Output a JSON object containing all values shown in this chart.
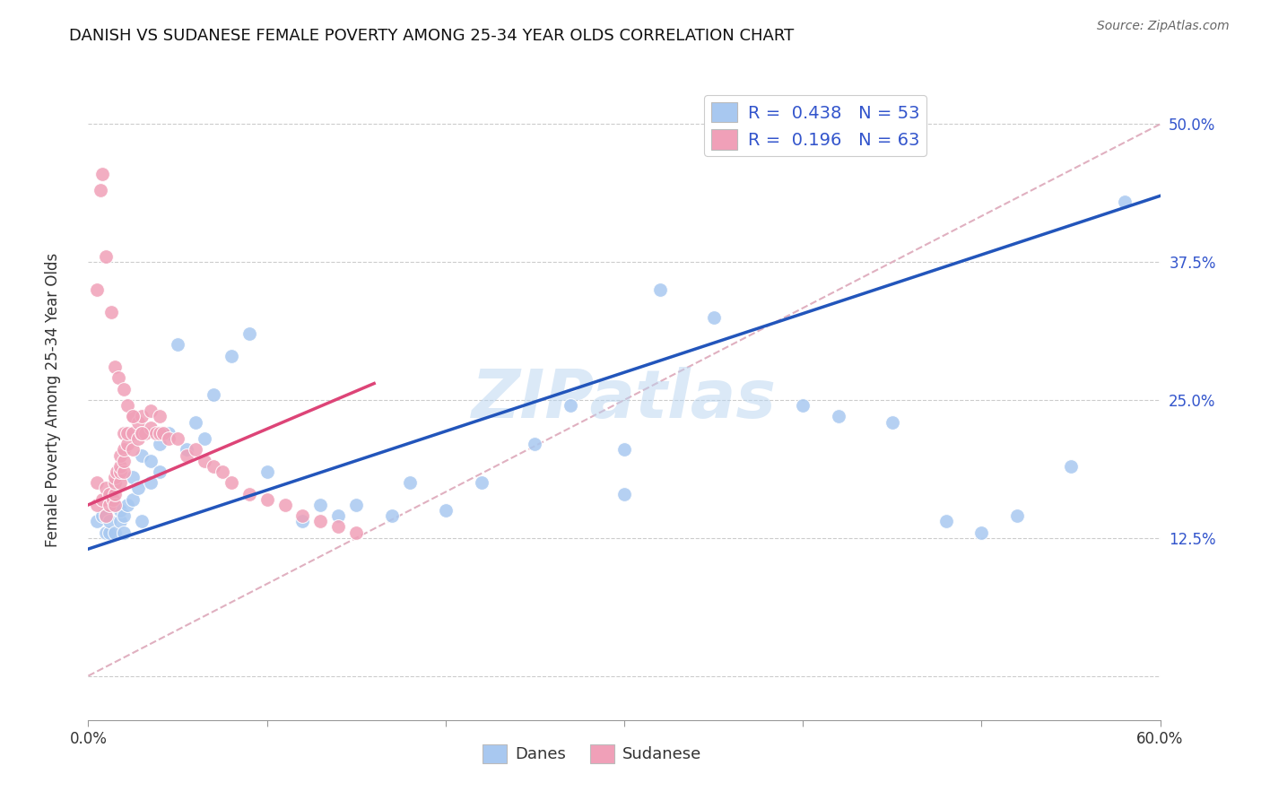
{
  "title": "DANISH VS SUDANESE FEMALE POVERTY AMONG 25-34 YEAR OLDS CORRELATION CHART",
  "source": "Source: ZipAtlas.com",
  "ylabel": "Female Poverty Among 25-34 Year Olds",
  "xlim": [
    0.0,
    0.6
  ],
  "ylim": [
    -0.04,
    0.54
  ],
  "xticks": [
    0.0,
    0.1,
    0.2,
    0.3,
    0.4,
    0.5,
    0.6
  ],
  "xticklabels": [
    "0.0%",
    "",
    "",
    "",
    "",
    "",
    "60.0%"
  ],
  "ytick_positions": [
    0.0,
    0.125,
    0.25,
    0.375,
    0.5
  ],
  "ytick_labels": [
    "",
    "12.5%",
    "25.0%",
    "37.5%",
    "50.0%"
  ],
  "danes_color": "#a8c8f0",
  "sudanese_color": "#f0a0b8",
  "danes_R": 0.438,
  "danes_N": 53,
  "sudanese_R": 0.196,
  "sudanese_N": 63,
  "danes_line_color": "#2255bb",
  "sudanese_line_color": "#dd4477",
  "diagonal_color": "#e0b0c0",
  "watermark": "ZIPatlas",
  "danes_line_x0": 0.0,
  "danes_line_y0": 0.115,
  "danes_line_x1": 0.6,
  "danes_line_y1": 0.435,
  "sudanese_line_x0": 0.0,
  "sudanese_line_y0": 0.155,
  "sudanese_line_x1": 0.16,
  "sudanese_line_y1": 0.265,
  "danes_x": [
    0.005,
    0.008,
    0.01,
    0.01,
    0.012,
    0.012,
    0.015,
    0.015,
    0.018,
    0.018,
    0.02,
    0.02,
    0.022,
    0.025,
    0.025,
    0.028,
    0.03,
    0.03,
    0.035,
    0.035,
    0.04,
    0.04,
    0.045,
    0.05,
    0.055,
    0.06,
    0.065,
    0.07,
    0.08,
    0.09,
    0.1,
    0.12,
    0.13,
    0.14,
    0.15,
    0.17,
    0.18,
    0.2,
    0.22,
    0.25,
    0.27,
    0.3,
    0.3,
    0.32,
    0.35,
    0.4,
    0.42,
    0.45,
    0.48,
    0.5,
    0.52,
    0.55,
    0.58
  ],
  "danes_y": [
    0.14,
    0.145,
    0.13,
    0.145,
    0.13,
    0.14,
    0.13,
    0.155,
    0.14,
    0.15,
    0.13,
    0.145,
    0.155,
    0.16,
    0.18,
    0.17,
    0.14,
    0.2,
    0.175,
    0.195,
    0.21,
    0.185,
    0.22,
    0.3,
    0.205,
    0.23,
    0.215,
    0.255,
    0.29,
    0.31,
    0.185,
    0.14,
    0.155,
    0.145,
    0.155,
    0.145,
    0.175,
    0.15,
    0.175,
    0.21,
    0.245,
    0.165,
    0.205,
    0.35,
    0.325,
    0.245,
    0.235,
    0.23,
    0.14,
    0.13,
    0.145,
    0.19,
    0.43
  ],
  "sudanese_x": [
    0.005,
    0.005,
    0.008,
    0.01,
    0.01,
    0.012,
    0.012,
    0.014,
    0.015,
    0.015,
    0.015,
    0.015,
    0.016,
    0.018,
    0.018,
    0.018,
    0.018,
    0.02,
    0.02,
    0.02,
    0.02,
    0.022,
    0.022,
    0.025,
    0.025,
    0.025,
    0.028,
    0.028,
    0.03,
    0.03,
    0.032,
    0.035,
    0.035,
    0.038,
    0.04,
    0.04,
    0.042,
    0.045,
    0.05,
    0.055,
    0.06,
    0.065,
    0.07,
    0.075,
    0.08,
    0.09,
    0.1,
    0.11,
    0.12,
    0.13,
    0.14,
    0.15,
    0.005,
    0.007,
    0.008,
    0.01,
    0.013,
    0.015,
    0.017,
    0.02,
    0.022,
    0.025,
    0.03
  ],
  "sudanese_y": [
    0.155,
    0.175,
    0.16,
    0.145,
    0.17,
    0.155,
    0.165,
    0.16,
    0.155,
    0.165,
    0.175,
    0.18,
    0.185,
    0.175,
    0.185,
    0.19,
    0.2,
    0.185,
    0.195,
    0.205,
    0.22,
    0.21,
    0.22,
    0.205,
    0.22,
    0.235,
    0.215,
    0.23,
    0.22,
    0.235,
    0.22,
    0.225,
    0.24,
    0.22,
    0.22,
    0.235,
    0.22,
    0.215,
    0.215,
    0.2,
    0.205,
    0.195,
    0.19,
    0.185,
    0.175,
    0.165,
    0.16,
    0.155,
    0.145,
    0.14,
    0.135,
    0.13,
    0.35,
    0.44,
    0.455,
    0.38,
    0.33,
    0.28,
    0.27,
    0.26,
    0.245,
    0.235,
    0.22
  ]
}
